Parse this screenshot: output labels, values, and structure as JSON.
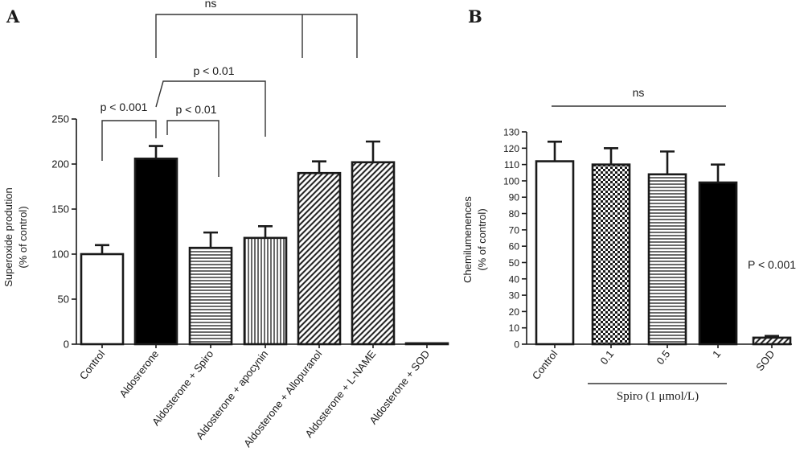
{
  "chart_data": [
    {
      "panel": "A",
      "type": "bar",
      "ylabel_lines": [
        "Superoxide prodution",
        "(% of control)"
      ],
      "ylim": [
        0,
        250
      ],
      "yticks": [
        0,
        50,
        100,
        150,
        200,
        250
      ],
      "categories": [
        "Control",
        "Aldosrerone",
        "Aldosterone + Spiro",
        "Aldosterone + apocynin",
        "Aldosterone + Allopuranol",
        "Aldosterone + L-NAME",
        "Aldosterone + SOD"
      ],
      "values": [
        100,
        206,
        107,
        118,
        190,
        202,
        1
      ],
      "errors": [
        10,
        14,
        17,
        13,
        13,
        23,
        0
      ],
      "patterns": [
        "white",
        "black",
        "hlines",
        "vlines",
        "diag",
        "diag",
        "white"
      ],
      "annotations": [
        {
          "text": "ns",
          "from": 1,
          "to": [
            4,
            5
          ]
        },
        {
          "text": "p < 0.01",
          "from": 1,
          "to": 3
        },
        {
          "text": "p < 0.001",
          "from": 0,
          "to": 1
        },
        {
          "text": "p < 0.01",
          "from": 1,
          "to": 2
        }
      ]
    },
    {
      "panel": "B",
      "type": "bar",
      "ylabel_lines": [
        "Chemilumenences",
        "(% of control)"
      ],
      "ylim": [
        0,
        130
      ],
      "yticks": [
        0,
        10,
        20,
        30,
        40,
        50,
        60,
        70,
        80,
        90,
        100,
        110,
        120,
        130
      ],
      "categories": [
        "Control",
        "0.1",
        "0.5",
        "1",
        "SOD"
      ],
      "values": [
        112,
        110,
        104,
        99,
        4
      ],
      "errors": [
        12,
        10,
        14,
        11,
        1
      ],
      "patterns": [
        "white",
        "checker",
        "hlines",
        "black",
        "diag"
      ],
      "group_label": "Spiro (1 μmol/L)",
      "annotations": [
        {
          "text": "ns",
          "span": [
            0,
            3
          ]
        },
        {
          "text": "P < 0.001",
          "near": 4
        }
      ]
    }
  ]
}
